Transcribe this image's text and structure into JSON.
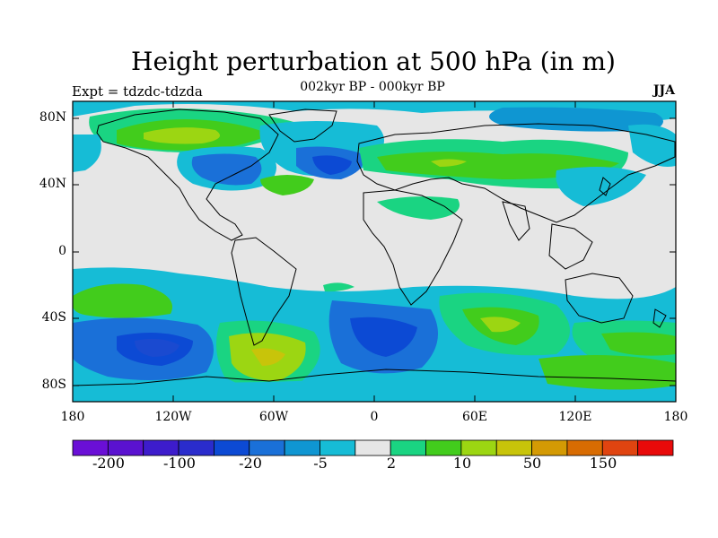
{
  "title": "Height perturbation at 500 hPa (in m)",
  "subtitle": "002kyr BP - 000kyr BP",
  "left_label": "Expt = tdzdc-tdzda",
  "right_label": "JJA",
  "lat_ticks": [
    "80N",
    "40N",
    "0",
    "40S",
    "80S"
  ],
  "lon_ticks": [
    "180",
    "120W",
    "60W",
    "0",
    "60E",
    "120E",
    "180"
  ],
  "colorbar": {
    "colors": [
      "#6a0fd6",
      "#5a12d0",
      "#3d1ccc",
      "#2a2ccc",
      "#0c4ad4",
      "#1a70d8",
      "#0f96d2",
      "#16bcd6",
      "#e6e6e6",
      "#1ad482",
      "#42cc1c",
      "#9cd612",
      "#c8c40a",
      "#d49a04",
      "#d86c02",
      "#e04410",
      "#e80a0a"
    ],
    "labels": [
      "-200",
      "-100",
      "-20",
      "-5",
      "2",
      "10",
      "50",
      "150"
    ]
  },
  "colors": {
    "neutral": "#e6e6e6",
    "light_blue": "#16bcd6",
    "mid_blue": "#0f96d2",
    "blue": "#1a70d8",
    "dark_blue": "#0c4ad4",
    "green_cyan": "#1ad482",
    "green": "#42cc1c",
    "yellow_green": "#9cd612",
    "yellow": "#c8c40a",
    "orange": "#d49a04"
  }
}
